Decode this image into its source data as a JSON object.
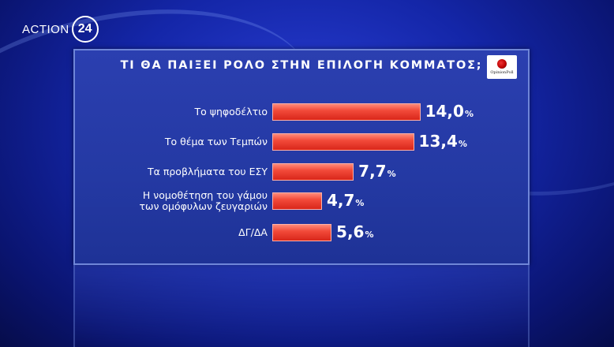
{
  "channel": {
    "logo_text": "ACTION",
    "logo_number": "24"
  },
  "poll_brand": "OpinionPoll",
  "chart_data": {
    "type": "bar",
    "orientation": "horizontal",
    "title": "ΤΙ ΘΑ ΠΑΙΞΕΙ ΡΟΛΟ ΣΤΗΝ ΕΠΙΛΟΓΗ ΚΟΜΜΑΤΟΣ;",
    "categories": [
      "Το ψηφοδέλτιο",
      "Το θέμα των Τεμπών",
      "Τα προβλήματα του ΕΣΥ",
      "Η νομοθέτηση του γάμου των ομόφυλων ζευγαριών",
      "ΔΓ/ΔΑ"
    ],
    "category_lines": [
      [
        "Το ψηφοδέλτιο"
      ],
      [
        "Το θέμα των Τεμπών"
      ],
      [
        "Τα προβλήματα του ΕΣΥ"
      ],
      [
        "Η νομοθέτηση του γάμου",
        "των ομόφυλων ζευγαριών"
      ],
      [
        "ΔΓ/ΔΑ"
      ]
    ],
    "values": [
      14.0,
      13.4,
      7.7,
      4.7,
      5.6
    ],
    "value_labels": [
      "14,0",
      "13,4",
      "7,7",
      "4,7",
      "5,6"
    ],
    "unit": "%",
    "bar_color": "#e8392b"
  }
}
